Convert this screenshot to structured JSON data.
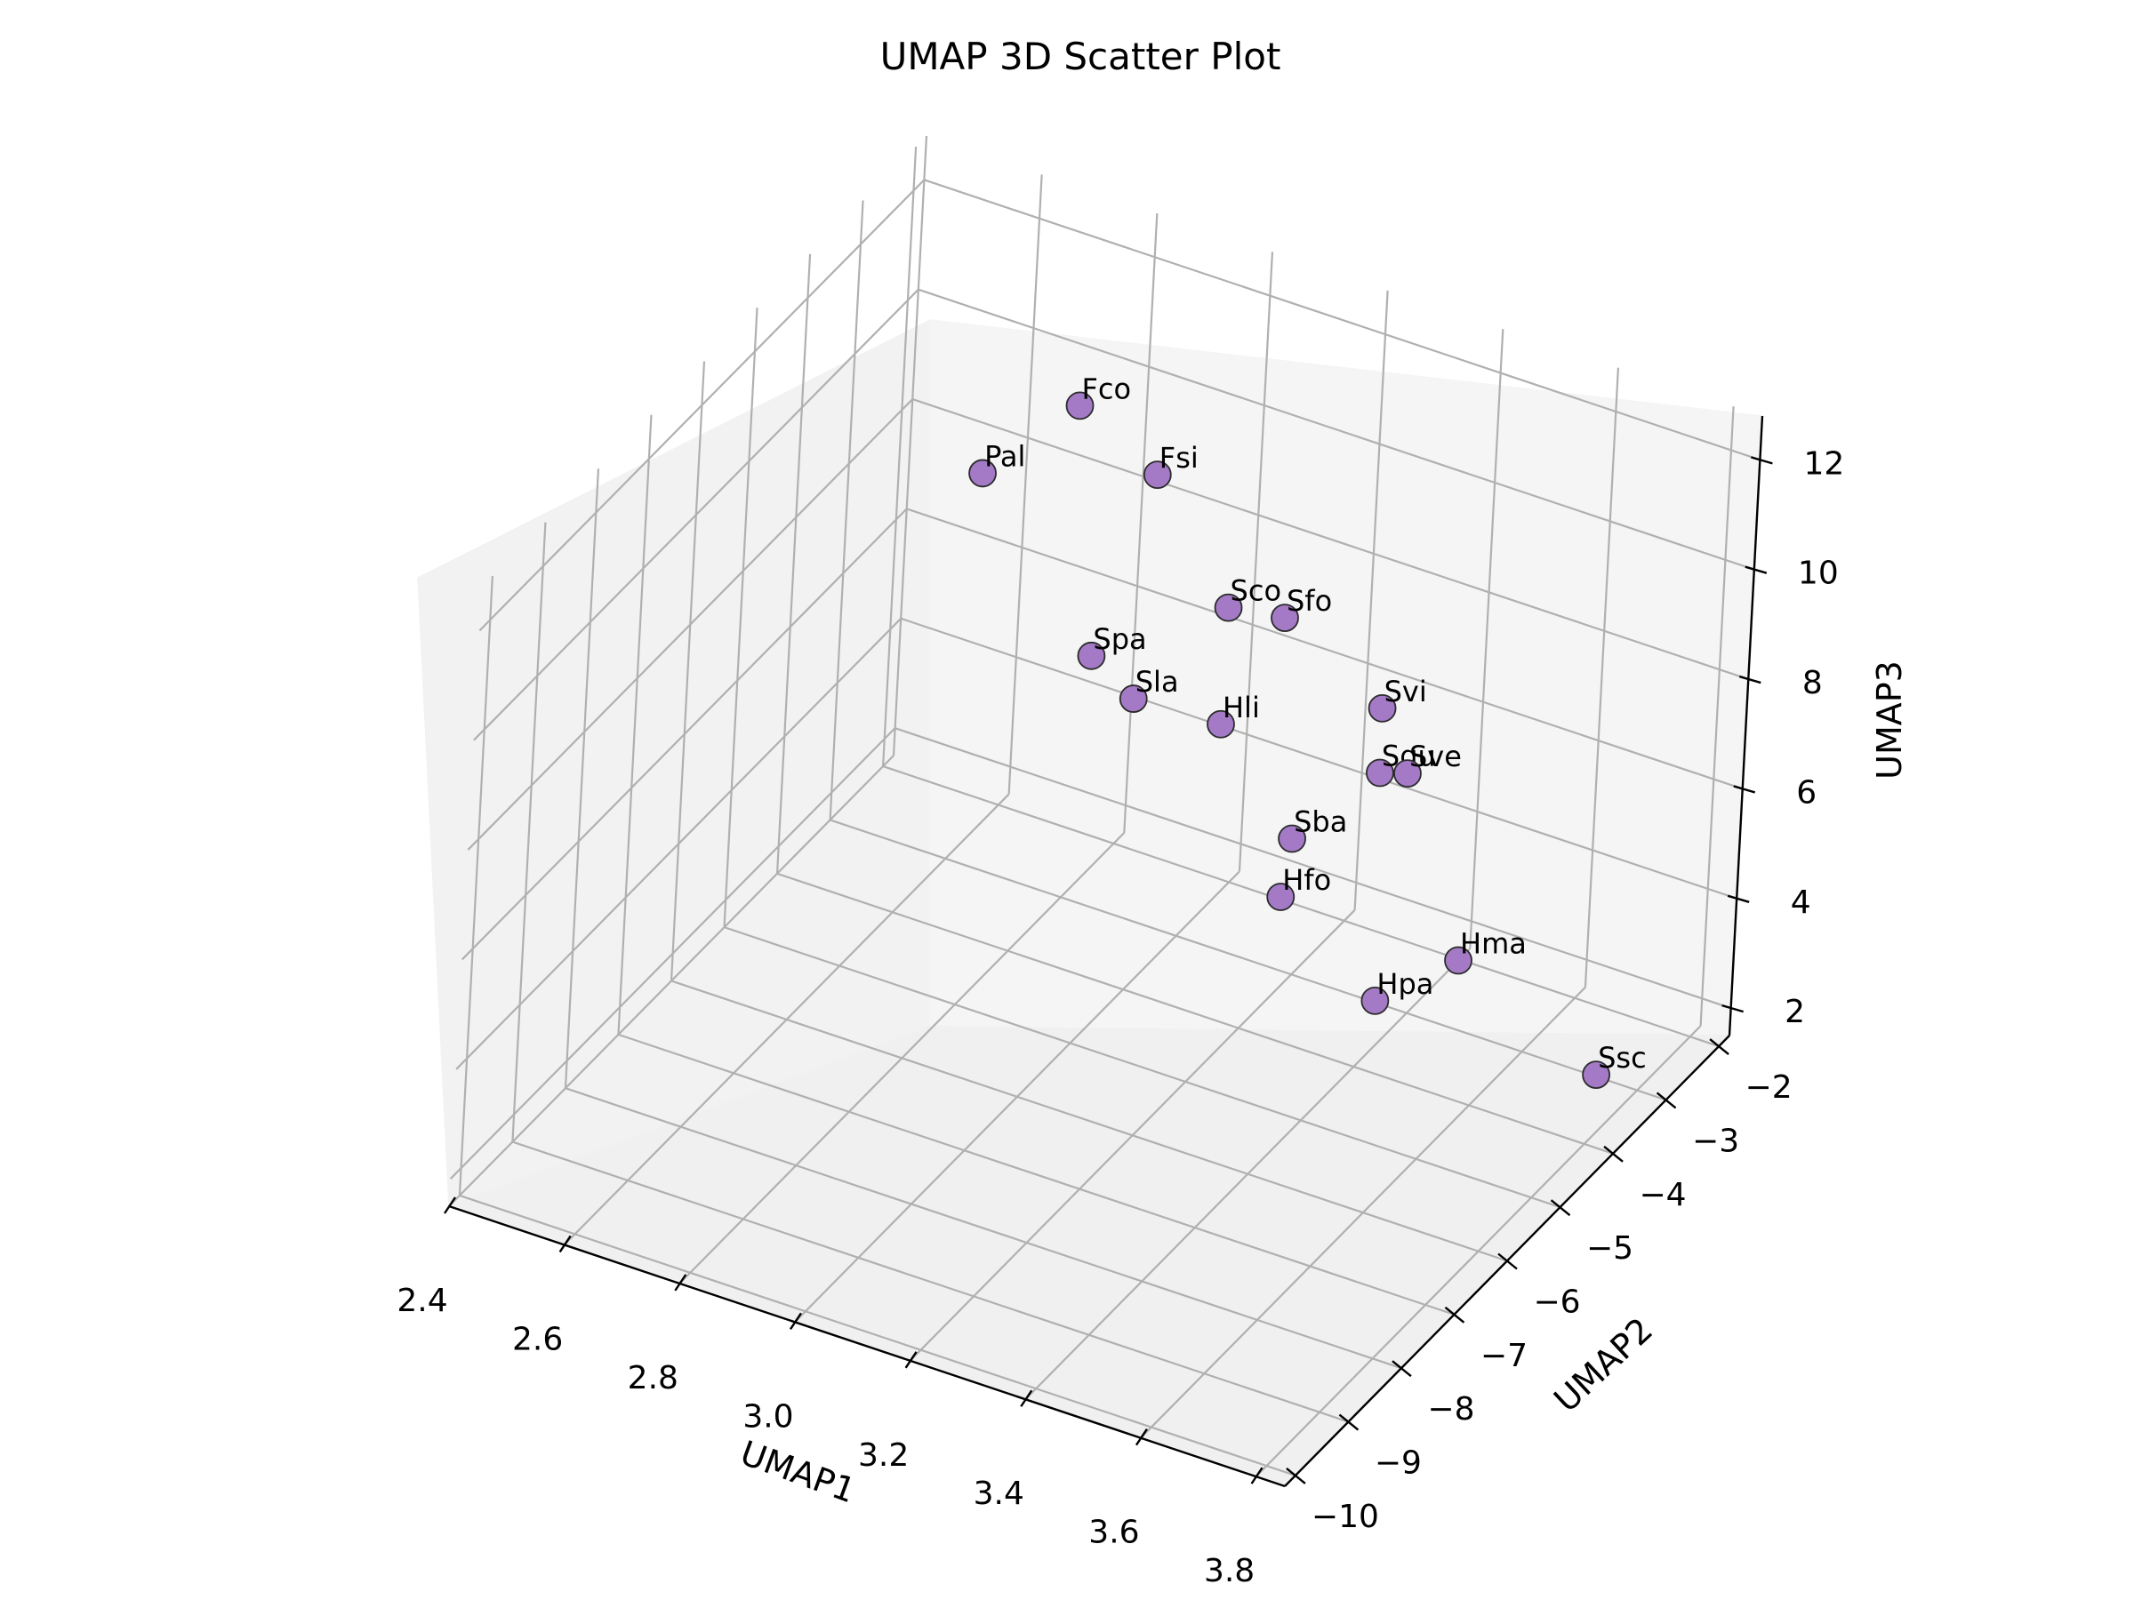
{
  "chart_data": {
    "type": "scatter",
    "title": "UMAP 3D Scatter Plot",
    "xlabel": "UMAP1",
    "ylabel": "UMAP2",
    "zlabel": "UMAP3",
    "xlim": [
      2.4,
      3.85
    ],
    "ylim": [
      -10.2,
      -1.8
    ],
    "zlim": [
      1.5,
      12.8
    ],
    "x_ticks": [
      "2.4",
      "2.6",
      "2.8",
      "3.0",
      "3.2",
      "3.4",
      "3.6",
      "3.8"
    ],
    "y_ticks": [
      "−2",
      "−3",
      "−4",
      "−5",
      "−6",
      "−7",
      "−8",
      "−9",
      "−10"
    ],
    "z_ticks": [
      "2",
      "4",
      "6",
      "8",
      "10",
      "12"
    ],
    "marker_color": "#a47ac6",
    "grid": true,
    "points": [
      {
        "label": "Pal",
        "x": 2.62,
        "y": -2.9,
        "z": 8.5
      },
      {
        "label": "Fco",
        "x": 2.72,
        "y": -2.2,
        "z": 9.4
      },
      {
        "label": "Fsi",
        "x": 2.85,
        "y": -2.1,
        "z": 8.5
      },
      {
        "label": "Spa",
        "x": 2.95,
        "y": -4.4,
        "z": 7.8
      },
      {
        "label": "Sla",
        "x": 3.0,
        "y": -4.1,
        "z": 6.9
      },
      {
        "label": "Sco",
        "x": 3.0,
        "y": -2.3,
        "z": 6.8
      },
      {
        "label": "Hli",
        "x": 3.1,
        "y": -3.5,
        "z": 6.2
      },
      {
        "label": "Sfo",
        "x": 3.08,
        "y": -2.1,
        "z": 6.7
      },
      {
        "label": "Sba",
        "x": 3.3,
        "y": -4.3,
        "z": 5.6
      },
      {
        "label": "Hfo",
        "x": 3.32,
        "y": -4.7,
        "z": 5.0
      },
      {
        "label": "Sgu",
        "x": 3.35,
        "y": -3.2,
        "z": 5.9
      },
      {
        "label": "Sve",
        "x": 3.38,
        "y": -3.0,
        "z": 5.8
      },
      {
        "label": "Svi",
        "x": 3.25,
        "y": -2.05,
        "z": 5.6
      },
      {
        "label": "Hma",
        "x": 3.62,
        "y": -4.6,
        "z": 4.8
      },
      {
        "label": "Hpa",
        "x": 3.55,
        "y": -5.4,
        "z": 4.6
      },
      {
        "label": "Ssc",
        "x": 3.78,
        "y": -3.6,
        "z": 2.3
      }
    ]
  }
}
